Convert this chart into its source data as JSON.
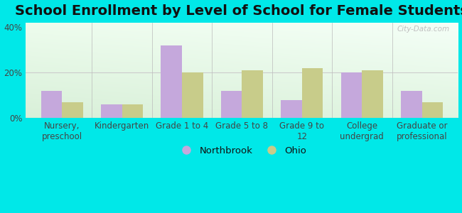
{
  "title": "School Enrollment by Level of School for Female Students",
  "categories": [
    "Nursery,\npreschool",
    "Kindergarten",
    "Grade 1 to 4",
    "Grade 5 to 8",
    "Grade 9 to\n12",
    "College\nundergrad",
    "Graduate or\nprofessional"
  ],
  "northbrook": [
    12,
    6,
    32,
    12,
    8,
    20,
    12
  ],
  "ohio": [
    7,
    6,
    20,
    21,
    22,
    21,
    7
  ],
  "northbrook_color": "#c5a8dc",
  "ohio_color": "#c8cc8a",
  "bar_width": 0.35,
  "ylim": [
    0,
    42
  ],
  "yticks": [
    0,
    20,
    40
  ],
  "ytick_labels": [
    "0%",
    "20%",
    "40%"
  ],
  "outer_bg": "#00e8e8",
  "plot_bg_topleft": "#e8f5e8",
  "plot_bg_topright": "#f8ffff",
  "plot_bg_bottom": "#d8f0d8",
  "legend_northbrook": "Northbrook",
  "legend_ohio": "Ohio",
  "title_fontsize": 14,
  "tick_fontsize": 8.5,
  "separator_color": "#bbbbbb",
  "grid_color": "#cccccc"
}
